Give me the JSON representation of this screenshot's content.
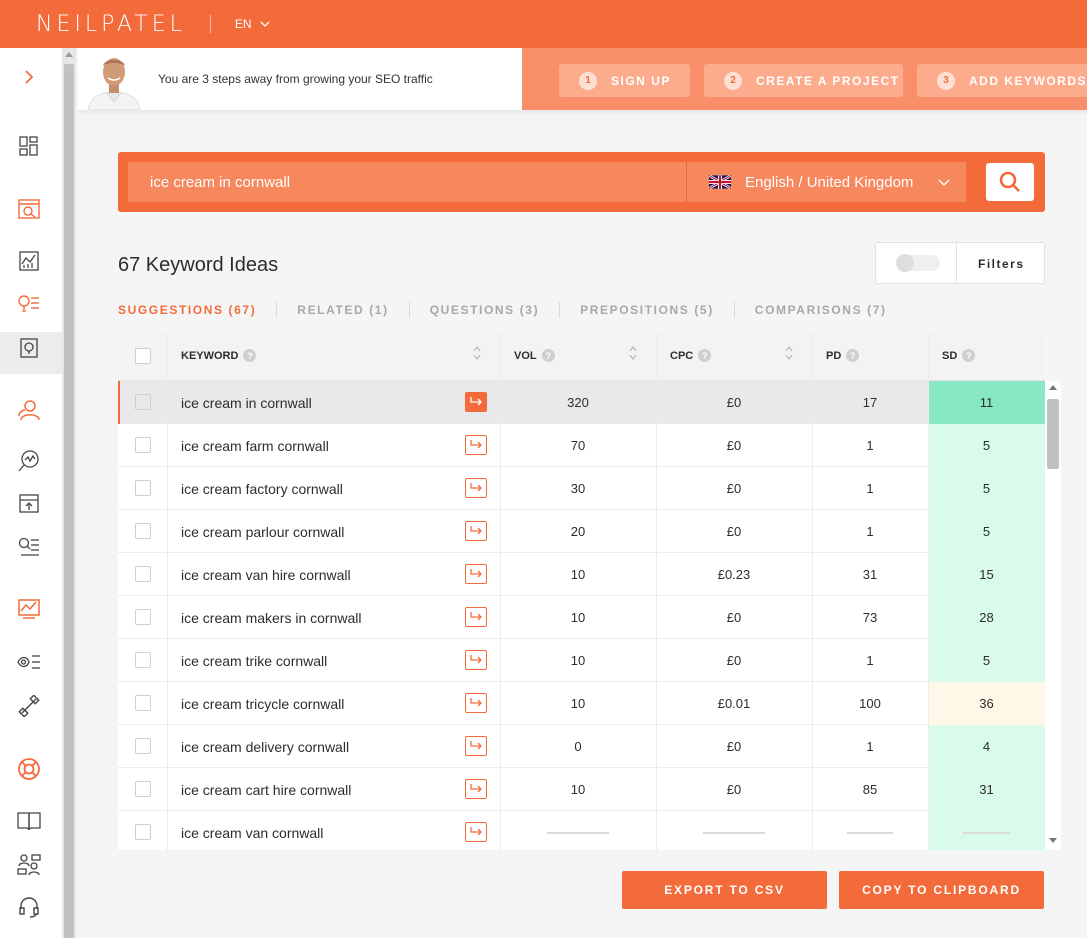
{
  "header": {
    "logo": "NEILPATEL",
    "language": "EN"
  },
  "onboarding": {
    "message": "You are 3 steps away from growing your SEO traffic",
    "steps": [
      {
        "num": "1",
        "label": "SIGN UP"
      },
      {
        "num": "2",
        "label": "CREATE A PROJECT"
      },
      {
        "num": "3",
        "label": "ADD KEYWORDS"
      }
    ]
  },
  "search": {
    "query": "ice cream in cornwall",
    "language_location": "English / United Kingdom"
  },
  "results": {
    "heading": "67 Keyword Ideas",
    "filters_label": "Filters"
  },
  "tabs": [
    {
      "label": "SUGGESTIONS (67)",
      "active": true
    },
    {
      "label": "RELATED (1)",
      "active": false
    },
    {
      "label": "QUESTIONS (3)",
      "active": false
    },
    {
      "label": "PREPOSITIONS (5)",
      "active": false
    },
    {
      "label": "COMPARISONS (7)",
      "active": false
    }
  ],
  "table": {
    "columns": {
      "keyword": "KEYWORD",
      "vol": "VOL",
      "cpc": "CPC",
      "pd": "PD",
      "sd": "SD"
    },
    "help_glyph": "?",
    "rows": [
      {
        "keyword": "ice cream in cornwall",
        "vol": "320",
        "cpc": "£0",
        "pd": "17",
        "sd": "11",
        "sd_color": "#86e9c2"
      },
      {
        "keyword": "ice cream farm cornwall",
        "vol": "70",
        "cpc": "£0",
        "pd": "1",
        "sd": "5",
        "sd_color": "#d9fbea"
      },
      {
        "keyword": "ice cream factory cornwall",
        "vol": "30",
        "cpc": "£0",
        "pd": "1",
        "sd": "5",
        "sd_color": "#d9fbea"
      },
      {
        "keyword": "ice cream parlour cornwall",
        "vol": "20",
        "cpc": "£0",
        "pd": "1",
        "sd": "5",
        "sd_color": "#d9fbea"
      },
      {
        "keyword": "ice cream van hire cornwall",
        "vol": "10",
        "cpc": "£0.23",
        "pd": "31",
        "sd": "15",
        "sd_color": "#d9fbea"
      },
      {
        "keyword": "ice cream makers in cornwall",
        "vol": "10",
        "cpc": "£0",
        "pd": "73",
        "sd": "28",
        "sd_color": "#d9fbea"
      },
      {
        "keyword": "ice cream trike cornwall",
        "vol": "10",
        "cpc": "£0",
        "pd": "1",
        "sd": "5",
        "sd_color": "#d9fbea"
      },
      {
        "keyword": "ice cream tricycle cornwall",
        "vol": "10",
        "cpc": "£0.01",
        "pd": "100",
        "sd": "36",
        "sd_color": "#fff8e8"
      },
      {
        "keyword": "ice cream delivery cornwall",
        "vol": "0",
        "cpc": "£0",
        "pd": "1",
        "sd": "4",
        "sd_color": "#d9fbea"
      },
      {
        "keyword": "ice cream cart hire cornwall",
        "vol": "10",
        "cpc": "£0",
        "pd": "85",
        "sd": "31",
        "sd_color": "#d9fbea"
      },
      {
        "keyword": "ice cream van cornwall",
        "vol": "",
        "cpc": "",
        "pd": "",
        "sd": "",
        "sd_color": "#d9fbea",
        "loading": true
      }
    ]
  },
  "actions": {
    "export": "EXPORT TO CSV",
    "copy": "COPY TO CLIPBOARD"
  },
  "colors": {
    "brand": "#f36b3b",
    "banner_right": "#f98f68"
  }
}
